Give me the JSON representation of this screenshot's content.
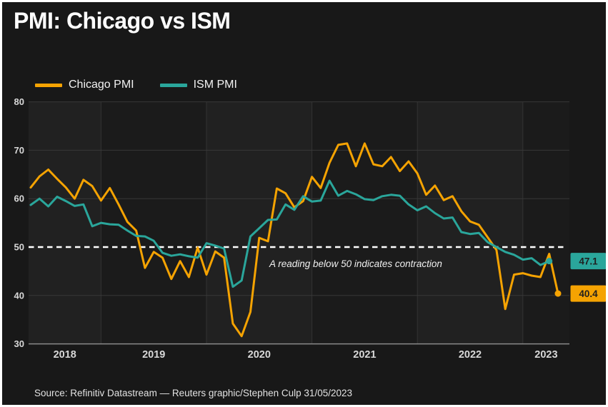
{
  "title": "PMI: Chicago vs ISM",
  "source": "Source: Refinitiv Datastream — Reuters graphic/Stephen Culp 31/05/2023",
  "legend": [
    {
      "label": "Chicago PMI",
      "color": "#f5a302"
    },
    {
      "label": "ISM PMI",
      "color": "#2aa69b"
    }
  ],
  "chart_data": {
    "type": "line",
    "title": "PMI: Chicago vs ISM",
    "ylim": [
      30,
      80
    ],
    "yticks": [
      30,
      40,
      50,
      60,
      70,
      80
    ],
    "x_tick_labels": [
      "2018",
      "2019",
      "2020",
      "2021",
      "2022",
      "2023"
    ],
    "grid": "horizontal-faint, vertical-at-year-boundaries, alternating-year-bands",
    "legend_position": "top-left",
    "threshold": {
      "value": 50,
      "style": "dashed",
      "color": "#ffffff"
    },
    "annotation": "A reading below 50 indicates contraction",
    "x_months": [
      "2018-05",
      "2018-06",
      "2018-07",
      "2018-08",
      "2018-09",
      "2018-10",
      "2018-11",
      "2018-12",
      "2019-01",
      "2019-02",
      "2019-03",
      "2019-04",
      "2019-05",
      "2019-06",
      "2019-07",
      "2019-08",
      "2019-09",
      "2019-10",
      "2019-11",
      "2019-12",
      "2020-01",
      "2020-02",
      "2020-03",
      "2020-04",
      "2020-05",
      "2020-06",
      "2020-07",
      "2020-08",
      "2020-09",
      "2020-10",
      "2020-11",
      "2020-12",
      "2021-01",
      "2021-02",
      "2021-03",
      "2021-04",
      "2021-05",
      "2021-06",
      "2021-07",
      "2021-08",
      "2021-09",
      "2021-10",
      "2021-11",
      "2021-12",
      "2022-01",
      "2022-02",
      "2022-03",
      "2022-04",
      "2022-05",
      "2022-06",
      "2022-07",
      "2022-08",
      "2022-09",
      "2022-10",
      "2022-11",
      "2022-12",
      "2023-01",
      "2023-02",
      "2023-03",
      "2023-04",
      "2023-05"
    ],
    "series": [
      {
        "name": "Chicago PMI",
        "color": "#f5a302",
        "end_label": "40.4",
        "values": [
          62.3,
          64.6,
          66,
          64.1,
          62.3,
          60,
          63.9,
          62.6,
          59.6,
          62.2,
          58.8,
          55.2,
          53.4,
          45.7,
          49,
          47.8,
          43.4,
          47.1,
          43.8,
          49.9,
          44.3,
          49.1,
          47.8,
          34.2,
          31.6,
          36.6,
          51.9,
          51.2,
          62.1,
          61.1,
          58.2,
          59.5,
          64.5,
          62.2,
          67.4,
          71.1,
          71.4,
          66.7,
          71.4,
          67.1,
          66.7,
          68.6,
          65.7,
          67.7,
          65.2,
          60.8,
          62.7,
          59.7,
          60.5,
          57.4,
          55.3,
          54.6,
          52,
          49.4,
          37.2,
          44.3,
          44.6,
          44.1,
          43.8,
          48.6,
          40.4
        ]
      },
      {
        "name": "ISM PMI",
        "color": "#2aa69b",
        "end_label": "47.1",
        "values": [
          58.7,
          60,
          58.4,
          60.4,
          59.5,
          58.5,
          58.8,
          54.3,
          55,
          54.7,
          54.6,
          53.4,
          52.3,
          52.2,
          51.3,
          48.8,
          48.2,
          48.5,
          48.1,
          47.8,
          50.8,
          50.3,
          49.7,
          41.8,
          43.1,
          52.2,
          53.9,
          55.6,
          55.7,
          58.8,
          57.7,
          60.5,
          59.4,
          59.6,
          63.7,
          60.6,
          61.6,
          60.9,
          59.9,
          59.7,
          60.5,
          60.8,
          60.6,
          58.8,
          57.6,
          58.4,
          57,
          55.9,
          56.1,
          53.1,
          52.7,
          52.9,
          51,
          50,
          49,
          48.4,
          47.4,
          47.7,
          46.3,
          47.1,
          null
        ]
      }
    ]
  }
}
